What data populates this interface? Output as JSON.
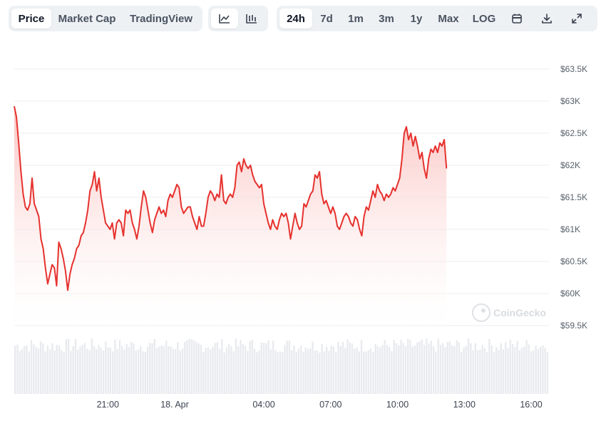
{
  "toolbar": {
    "view_tabs": [
      {
        "label": "Price",
        "active": true
      },
      {
        "label": "Market Cap",
        "active": false
      },
      {
        "label": "TradingView",
        "active": false
      }
    ],
    "chart_type_icons": [
      "line-chart-icon",
      "ohlc-chart-icon"
    ],
    "ranges": [
      {
        "label": "24h",
        "active": true
      },
      {
        "label": "7d",
        "active": false
      },
      {
        "label": "1m",
        "active": false
      },
      {
        "label": "3m",
        "active": false
      },
      {
        "label": "1y",
        "active": false
      },
      {
        "label": "Max",
        "active": false
      },
      {
        "label": "LOG",
        "active": false
      }
    ],
    "action_icons": [
      "calendar-icon",
      "download-icon",
      "expand-icon"
    ]
  },
  "watermark": "CoinGecko",
  "colors": {
    "line": "#e6322e",
    "fill_top": "#f9b8b5",
    "volume": "#e8eaee",
    "grid": "#eceef1"
  },
  "chart_data": {
    "type": "area",
    "y_ticks": [
      "$63.5K",
      "$63K",
      "$62.5K",
      "$62K",
      "$61.5K",
      "$61K",
      "$60.5K",
      "$60K",
      "$59.5K"
    ],
    "y_tick_values": [
      63500,
      63000,
      62500,
      62000,
      61500,
      61000,
      60500,
      60000,
      59500
    ],
    "ylim": [
      59500,
      63500
    ],
    "x_ticks": [
      "21:00",
      "18. Apr",
      "04:00",
      "07:00",
      "10:00",
      "13:00",
      "16:00"
    ],
    "x_tick_hours": [
      21,
      24,
      28,
      31,
      34,
      37,
      40
    ],
    "x_range_hours": [
      16.8,
      40.8
    ],
    "grid": true,
    "price": [
      [
        16.8,
        62920
      ],
      [
        16.9,
        62750
      ],
      [
        17.0,
        62350
      ],
      [
        17.1,
        61900
      ],
      [
        17.2,
        61550
      ],
      [
        17.3,
        61350
      ],
      [
        17.4,
        61300
      ],
      [
        17.5,
        61400
      ],
      [
        17.6,
        61800
      ],
      [
        17.7,
        61400
      ],
      [
        17.8,
        61300
      ],
      [
        17.9,
        61200
      ],
      [
        18.0,
        60850
      ],
      [
        18.1,
        60700
      ],
      [
        18.2,
        60400
      ],
      [
        18.3,
        60150
      ],
      [
        18.4,
        60300
      ],
      [
        18.5,
        60450
      ],
      [
        18.6,
        60400
      ],
      [
        18.7,
        60120
      ],
      [
        18.8,
        60800
      ],
      [
        18.9,
        60700
      ],
      [
        19.0,
        60550
      ],
      [
        19.1,
        60350
      ],
      [
        19.2,
        60050
      ],
      [
        19.3,
        60300
      ],
      [
        19.4,
        60450
      ],
      [
        19.5,
        60550
      ],
      [
        19.6,
        60700
      ],
      [
        19.7,
        60750
      ],
      [
        19.8,
        60900
      ],
      [
        19.9,
        60950
      ],
      [
        20.0,
        61100
      ],
      [
        20.1,
        61300
      ],
      [
        20.2,
        61600
      ],
      [
        20.3,
        61700
      ],
      [
        20.4,
        61900
      ],
      [
        20.5,
        61600
      ],
      [
        20.6,
        61800
      ],
      [
        20.7,
        61500
      ],
      [
        20.8,
        61300
      ],
      [
        20.9,
        61100
      ],
      [
        21.0,
        61050
      ],
      [
        21.1,
        61000
      ],
      [
        21.2,
        61100
      ],
      [
        21.3,
        60850
      ],
      [
        21.4,
        61100
      ],
      [
        21.5,
        61150
      ],
      [
        21.6,
        61100
      ],
      [
        21.7,
        60900
      ],
      [
        21.8,
        61300
      ],
      [
        21.9,
        61250
      ],
      [
        22.0,
        61300
      ],
      [
        22.1,
        61100
      ],
      [
        22.2,
        61000
      ],
      [
        22.3,
        60850
      ],
      [
        22.4,
        61050
      ],
      [
        22.5,
        61350
      ],
      [
        22.6,
        61600
      ],
      [
        22.7,
        61500
      ],
      [
        22.8,
        61300
      ],
      [
        22.9,
        61100
      ],
      [
        23.0,
        60950
      ],
      [
        23.1,
        61150
      ],
      [
        23.2,
        61250
      ],
      [
        23.3,
        61350
      ],
      [
        23.4,
        61250
      ],
      [
        23.5,
        61300
      ],
      [
        23.6,
        61200
      ],
      [
        23.7,
        61450
      ],
      [
        23.8,
        61550
      ],
      [
        23.9,
        61500
      ],
      [
        24.0,
        61600
      ],
      [
        24.1,
        61700
      ],
      [
        24.2,
        61650
      ],
      [
        24.3,
        61350
      ],
      [
        24.4,
        61250
      ],
      [
        24.5,
        61300
      ],
      [
        24.6,
        61350
      ],
      [
        24.7,
        61350
      ],
      [
        24.8,
        61200
      ],
      [
        24.9,
        61100
      ],
      [
        25.0,
        61000
      ],
      [
        25.1,
        61200
      ],
      [
        25.2,
        61050
      ],
      [
        25.3,
        61050
      ],
      [
        25.4,
        61250
      ],
      [
        25.5,
        61500
      ],
      [
        25.6,
        61600
      ],
      [
        25.7,
        61550
      ],
      [
        25.8,
        61450
      ],
      [
        25.9,
        61550
      ],
      [
        26.0,
        61500
      ],
      [
        26.1,
        61850
      ],
      [
        26.2,
        61450
      ],
      [
        26.3,
        61400
      ],
      [
        26.4,
        61500
      ],
      [
        26.5,
        61550
      ],
      [
        26.6,
        61500
      ],
      [
        26.7,
        61650
      ],
      [
        26.8,
        62000
      ],
      [
        26.9,
        62050
      ],
      [
        27.0,
        61900
      ],
      [
        27.1,
        62100
      ],
      [
        27.2,
        62000
      ],
      [
        27.3,
        61950
      ],
      [
        27.4,
        62000
      ],
      [
        27.5,
        61850
      ],
      [
        27.6,
        61750
      ],
      [
        27.7,
        61700
      ],
      [
        27.8,
        61650
      ],
      [
        27.9,
        61700
      ],
      [
        28.0,
        61400
      ],
      [
        28.1,
        61250
      ],
      [
        28.2,
        61100
      ],
      [
        28.3,
        61000
      ],
      [
        28.4,
        61150
      ],
      [
        28.5,
        61050
      ],
      [
        28.6,
        61000
      ],
      [
        28.7,
        61150
      ],
      [
        28.8,
        61250
      ],
      [
        28.9,
        61200
      ],
      [
        29.0,
        61250
      ],
      [
        29.1,
        61100
      ],
      [
        29.2,
        60850
      ],
      [
        29.3,
        61050
      ],
      [
        29.4,
        61250
      ],
      [
        29.5,
        61100
      ],
      [
        29.6,
        61000
      ],
      [
        29.7,
        61050
      ],
      [
        29.8,
        61400
      ],
      [
        29.9,
        61350
      ],
      [
        30.0,
        61450
      ],
      [
        30.1,
        61550
      ],
      [
        30.2,
        61600
      ],
      [
        30.3,
        61850
      ],
      [
        30.4,
        61800
      ],
      [
        30.5,
        61900
      ],
      [
        30.6,
        61550
      ],
      [
        30.7,
        61400
      ],
      [
        30.8,
        61450
      ],
      [
        30.9,
        61350
      ],
      [
        31.0,
        61250
      ],
      [
        31.1,
        61350
      ],
      [
        31.2,
        61250
      ],
      [
        31.3,
        61050
      ],
      [
        31.4,
        61000
      ],
      [
        31.5,
        61100
      ],
      [
        31.6,
        61200
      ],
      [
        31.7,
        61250
      ],
      [
        31.8,
        61200
      ],
      [
        31.9,
        61100
      ],
      [
        32.0,
        61050
      ],
      [
        32.1,
        61200
      ],
      [
        32.2,
        61150
      ],
      [
        32.3,
        61000
      ],
      [
        32.4,
        60900
      ],
      [
        32.5,
        61200
      ],
      [
        32.6,
        61350
      ],
      [
        32.7,
        61300
      ],
      [
        32.8,
        61450
      ],
      [
        32.9,
        61600
      ],
      [
        33.0,
        61500
      ],
      [
        33.1,
        61700
      ],
      [
        33.2,
        61600
      ],
      [
        33.3,
        61550
      ],
      [
        33.4,
        61450
      ],
      [
        33.5,
        61550
      ],
      [
        33.6,
        61500
      ],
      [
        33.7,
        61550
      ],
      [
        33.8,
        61650
      ],
      [
        33.9,
        61600
      ],
      [
        34.0,
        61700
      ],
      [
        34.1,
        61800
      ],
      [
        34.2,
        62100
      ],
      [
        34.3,
        62500
      ],
      [
        34.4,
        62600
      ],
      [
        34.5,
        62400
      ],
      [
        34.6,
        62500
      ],
      [
        34.7,
        62300
      ],
      [
        34.8,
        62450
      ],
      [
        34.9,
        62300
      ],
      [
        35.0,
        62100
      ],
      [
        35.1,
        62200
      ],
      [
        35.2,
        61950
      ],
      [
        35.3,
        61800
      ],
      [
        35.4,
        62100
      ],
      [
        35.5,
        62250
      ],
      [
        35.6,
        62200
      ],
      [
        35.7,
        62300
      ],
      [
        35.8,
        62200
      ],
      [
        35.9,
        62350
      ],
      [
        36.0,
        62300
      ],
      [
        36.1,
        62400
      ],
      [
        36.2,
        61950
      ]
    ],
    "volume_bar_count": 230
  }
}
